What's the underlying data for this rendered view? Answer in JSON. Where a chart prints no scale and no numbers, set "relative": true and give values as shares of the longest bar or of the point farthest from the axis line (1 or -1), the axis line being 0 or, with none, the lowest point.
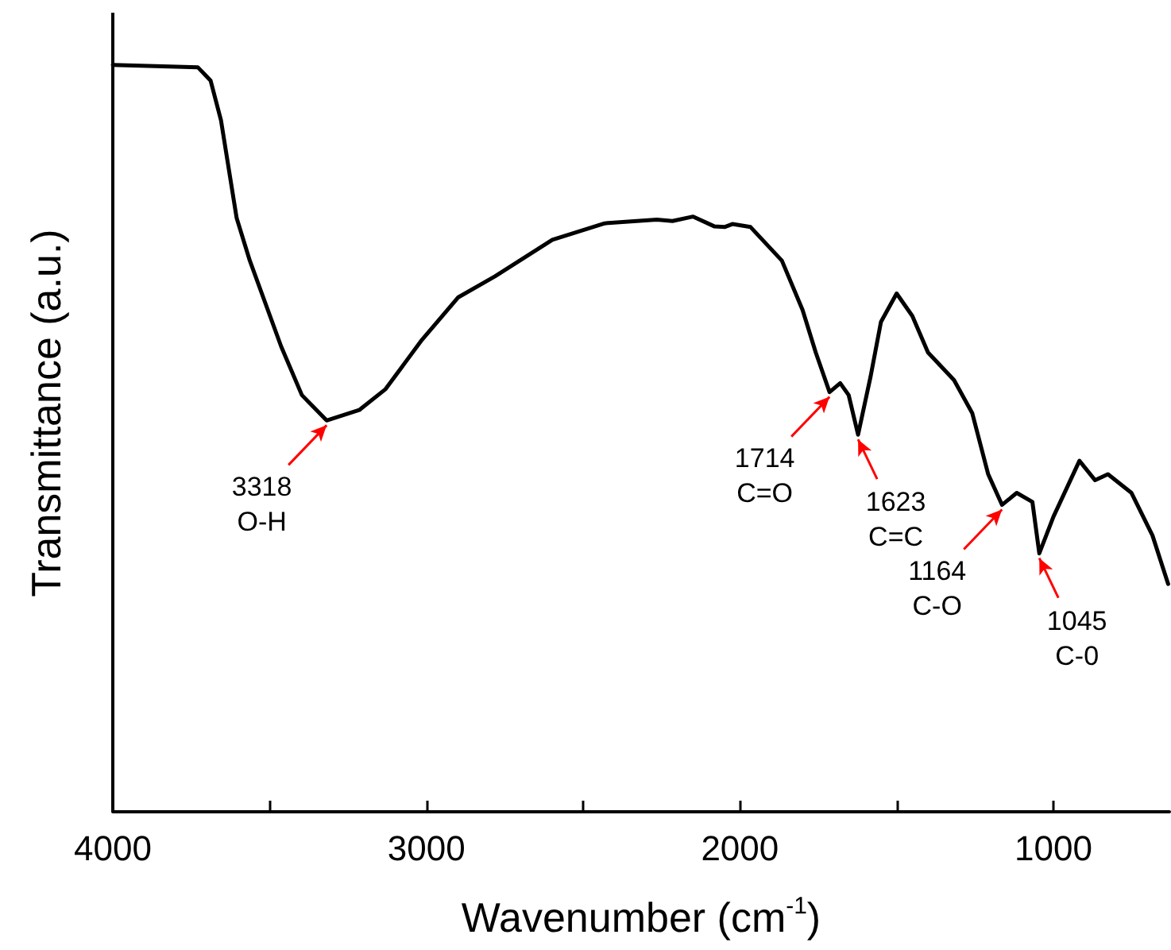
{
  "chart_data": {
    "type": "line",
    "relative": true,
    "xlabel": "Wavenumber (cm$^{-1}$)",
    "ylabel": "Transmittance (a.u.)",
    "xlim": [
      4000,
      630
    ],
    "xticks": [
      4000,
      {
        "value": 3500,
        "label": null
      },
      3000,
      {
        "value": 2500,
        "label": null
      },
      2000,
      {
        "value": 1500,
        "label": null
      },
      1000
    ],
    "series": [
      {
        "color": "#000000",
        "x": [
          4000,
          3729,
          3688,
          3655,
          3605,
          3563,
          3463,
          3397,
          3318,
          3214,
          3130,
          3014,
          2898,
          2781,
          2598,
          2431,
          2265,
          2215,
          2149,
          2082,
          2049,
          2024,
          1966,
          1866,
          1800,
          1758,
          1714,
          1680,
          1653,
          1623,
          1583,
          1550,
          1500,
          1450,
          1400,
          1317,
          1259,
          1208,
          1164,
          1117,
          1067,
          1045,
          1000,
          917,
          867,
          826,
          751,
          684,
          634
        ],
        "values": [
          1,
          0.997,
          0.979,
          0.926,
          0.795,
          0.738,
          0.623,
          0.558,
          0.524,
          0.538,
          0.566,
          0.632,
          0.689,
          0.717,
          0.766,
          0.788,
          0.793,
          0.791,
          0.797,
          0.784,
          0.783,
          0.787,
          0.783,
          0.738,
          0.672,
          0.615,
          0.562,
          0.574,
          0.558,
          0.505,
          0.583,
          0.656,
          0.694,
          0.664,
          0.615,
          0.578,
          0.534,
          0.452,
          0.411,
          0.427,
          0.415,
          0.346,
          0.395,
          0.47,
          0.444,
          0.452,
          0.427,
          0.37,
          0.305
        ]
      }
    ],
    "annotations": [
      {
        "text": "3318\nO-H",
        "x": 3318,
        "y": 0.524
      },
      {
        "text": "1714\nC=O",
        "x": 1714,
        "y": 0.562
      },
      {
        "text": "1623\nC=C",
        "x": 1623,
        "y": 0.505
      },
      {
        "text": "1164\nC-O",
        "x": 1164,
        "y": 0.411
      },
      {
        "text": "1045\nC-0",
        "x": 1045,
        "y": 0.346
      }
    ]
  }
}
